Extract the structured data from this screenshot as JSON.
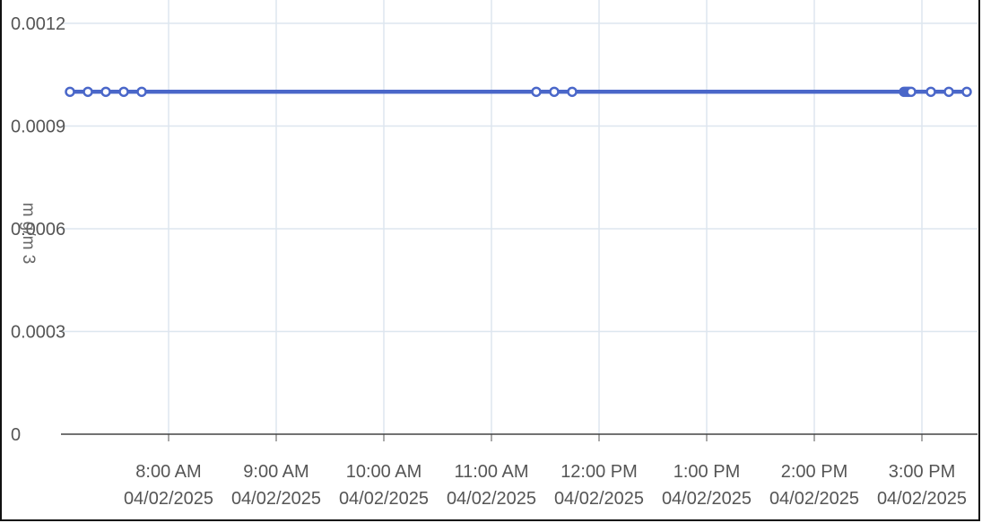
{
  "chart_data": {
    "type": "line",
    "title": "",
    "ylabel": "m g/m 3",
    "xlabel": "",
    "ylim": [
      0,
      0.0012
    ],
    "yticks": [
      "0",
      "0.0003",
      "0.0006",
      "0.0009",
      "0.0012"
    ],
    "xticks": [
      {
        "time": "8:00 AM",
        "date": "04/02/2025"
      },
      {
        "time": "9:00 AM",
        "date": "04/02/2025"
      },
      {
        "time": "10:00 AM",
        "date": "04/02/2025"
      },
      {
        "time": "11:00 AM",
        "date": "04/02/2025"
      },
      {
        "time": "12:00 PM",
        "date": "04/02/2025"
      },
      {
        "time": "1:00 PM",
        "date": "04/02/2025"
      },
      {
        "time": "2:00 PM",
        "date": "04/02/2025"
      },
      {
        "time": "3:00 PM",
        "date": "04/02/2025"
      }
    ],
    "grid": true,
    "colors": {
      "line": "#4a67c9",
      "grid": "#dde6ef",
      "axis": "#555555"
    },
    "series": [
      {
        "x": [
          "7:05 AM",
          "7:15 AM",
          "7:25 AM",
          "7:35 AM",
          "7:45 AM",
          "11:25 AM",
          "11:35 AM",
          "11:45 AM",
          "2:50 PM",
          "2:51 PM",
          "2:52 PM",
          "2:53 PM",
          "2:54 PM",
          "3:05 PM",
          "3:15 PM",
          "3:25 PM"
        ],
        "y": [
          0.001,
          0.001,
          0.001,
          0.001,
          0.001,
          0.001,
          0.001,
          0.001,
          0.001,
          0.001,
          0.001,
          0.001,
          0.001,
          0.001,
          0.001,
          0.001
        ]
      }
    ]
  }
}
